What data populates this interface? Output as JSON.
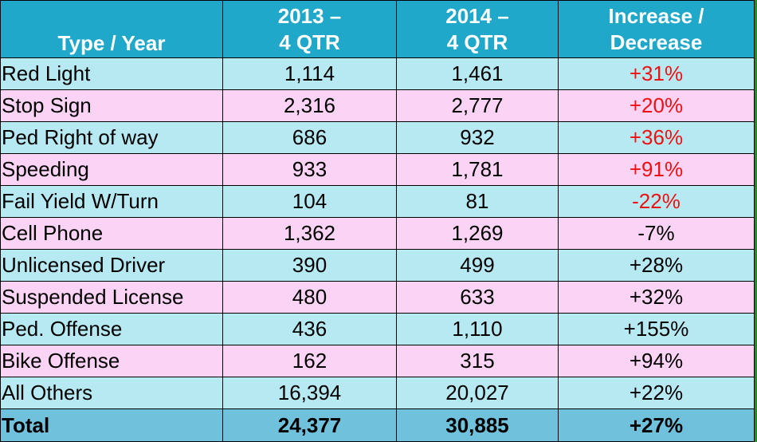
{
  "table": {
    "headers": [
      {
        "lines": [
          "Type / Year"
        ]
      },
      {
        "lines": [
          "2013 –",
          "4 QTR"
        ]
      },
      {
        "lines": [
          "2014 –",
          "4 QTR"
        ]
      },
      {
        "lines": [
          "Increase /",
          "Decrease"
        ]
      }
    ],
    "rows": [
      {
        "type": "Red Light",
        "y2013": "1,114",
        "y2014": "1,461",
        "change": "+31%"
      },
      {
        "type": "Stop Sign",
        "y2013": "2,316",
        "y2014": "2,777",
        "change": "+20%"
      },
      {
        "type": "Ped Right of way",
        "y2013": "686",
        "y2014": "932",
        "change": "+36%"
      },
      {
        "type": "Speeding",
        "y2013": "933",
        "y2014": "1,781",
        "change": "+91%"
      },
      {
        "type": "Fail Yield W/Turn",
        "y2013": "104",
        "y2014": "81",
        "change": "-22%"
      },
      {
        "type": "Cell Phone",
        "y2013": "1,362",
        "y2014": "1,269",
        "change": "-7%"
      },
      {
        "type": "Unlicensed Driver",
        "y2013": "390",
        "y2014": "499",
        "change": "+28%"
      },
      {
        "type": "Suspended License",
        "y2013": "480",
        "y2014": "633",
        "change": "+32%"
      },
      {
        "type": "Ped. Offense",
        "y2013": "436",
        "y2014": "1,110",
        "change": "+155%"
      },
      {
        "type": "Bike Offense",
        "y2013": "162",
        "y2014": "315",
        "change": "+94%"
      },
      {
        "type": "All Others",
        "y2013": "16,394",
        "y2014": "20,027",
        "change": "+22%"
      }
    ],
    "total": {
      "type": "Total",
      "y2013": "24,377",
      "y2014": "30,885",
      "change": "+27%"
    }
  },
  "colors": {
    "header_bg": "#1fa8c9",
    "row_cyan": "#b6e9f2",
    "row_pink": "#fbd3f5",
    "total_bg": "#6fc1dc",
    "highlight_red": "#ee1111"
  }
}
